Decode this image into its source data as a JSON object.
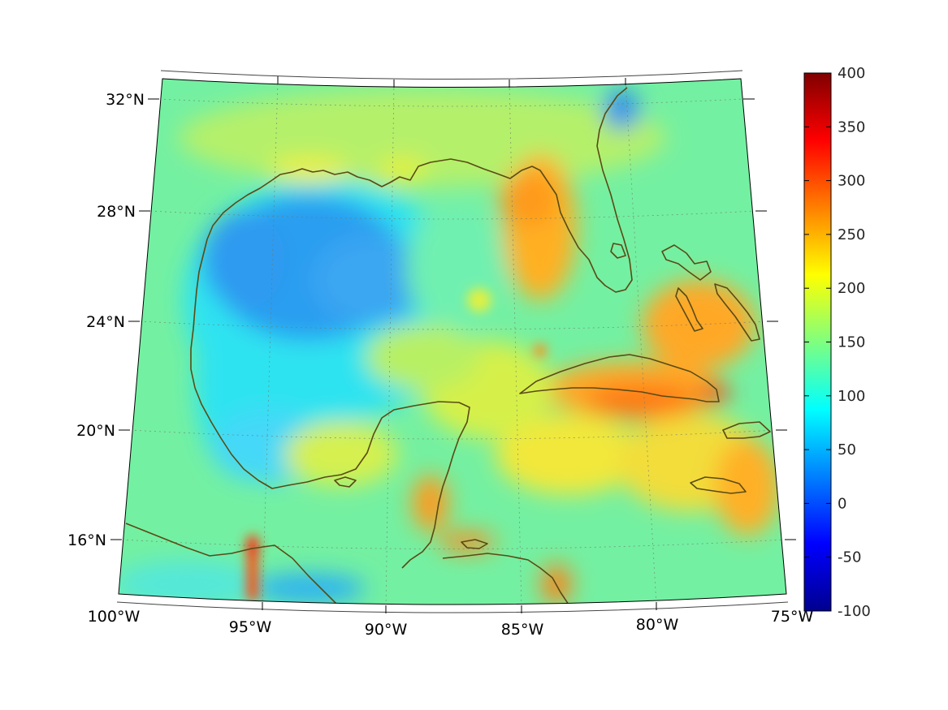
{
  "map": {
    "lat_labels": [
      "32°N",
      "28°N",
      "24°N",
      "20°N",
      "16°N"
    ],
    "lon_labels": [
      "100°W",
      "95°W",
      "90°W",
      "85°W",
      "80°W",
      "75°W"
    ],
    "coastline_color": "#5a4a14",
    "colormap": "jet"
  },
  "colorbar": {
    "ticks": [
      "400",
      "350",
      "300",
      "250",
      "200",
      "150",
      "100",
      "50",
      "0",
      "-50",
      "-100"
    ],
    "min": -100,
    "max": 400
  }
}
